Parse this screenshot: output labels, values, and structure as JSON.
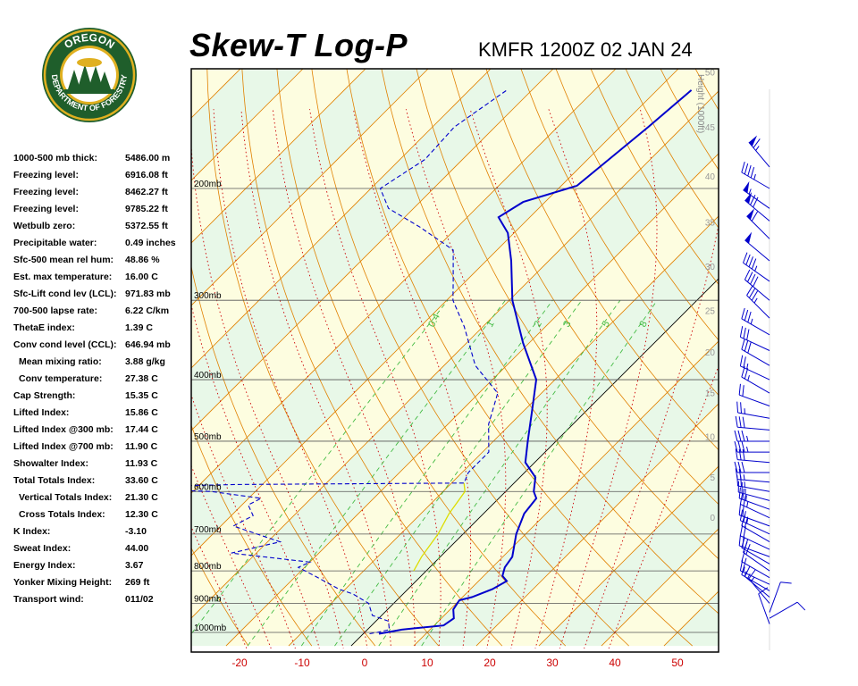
{
  "header": {
    "title": "Skew-T Log-P",
    "station": "KMFR 1200Z 02 JAN 24"
  },
  "logo": {
    "top_text": "OREGON",
    "bottom_text": "DEPARTMENT OF FORESTRY"
  },
  "indices": [
    {
      "label": "1000-500 mb thick:",
      "value": "5486.00 m"
    },
    {
      "label": "Freezing level:",
      "value": "6916.08 ft"
    },
    {
      "label": "Freezing level:",
      "value": "8462.27 ft"
    },
    {
      "label": "Freezing level:",
      "value": "9785.22 ft"
    },
    {
      "label": "Wetbulb zero:",
      "value": "5372.55 ft"
    },
    {
      "label": "Precipitable water:",
      "value": "0.49 inches"
    },
    {
      "label": "Sfc-500 mean rel hum:",
      "value": "48.86 %"
    },
    {
      "label": "Est. max temperature:",
      "value": "16.00 C"
    },
    {
      "label": "Sfc-Lift cond lev (LCL):",
      "value": "971.83 mb"
    },
    {
      "label": "700-500 lapse rate:",
      "value": "6.22 C/km"
    },
    {
      "label": "ThetaE index:",
      "value": "1.39 C"
    },
    {
      "label": "Conv cond level (CCL):",
      "value": "646.94 mb"
    },
    {
      "label": "Mean mixing ratio:",
      "value": "3.88 g/kg",
      "indent": true
    },
    {
      "label": "Conv temperature:",
      "value": "27.38 C",
      "indent": true
    },
    {
      "label": "Cap Strength:",
      "value": "15.35 C"
    },
    {
      "label": "Lifted Index:",
      "value": "15.86 C"
    },
    {
      "label": "Lifted Index @300 mb:",
      "value": "17.44 C"
    },
    {
      "label": "Lifted Index @700 mb:",
      "value": "11.90 C"
    },
    {
      "label": "Showalter Index:",
      "value": "11.93 C"
    },
    {
      "label": "Total Totals Index:",
      "value": "33.60 C"
    },
    {
      "label": "Vertical Totals Index:",
      "value": "21.30 C",
      "indent": true
    },
    {
      "label": "Cross Totals Index:",
      "value": "12.30 C",
      "indent": true
    },
    {
      "label": "K Index:",
      "value": "-3.10"
    },
    {
      "label": "Sweat Index:",
      "value": "44.00"
    },
    {
      "label": "Energy Index:",
      "value": "3.67"
    },
    {
      "label": "Yonker Mixing Height:",
      "value": "269 ft"
    },
    {
      "label": "Transport wind:",
      "value": "011/02"
    }
  ],
  "chart_data": {
    "type": "skew-t log-p",
    "x_axis": {
      "unit": "C",
      "ticks": [
        -20,
        -10,
        0,
        10,
        20,
        30,
        40,
        50
      ],
      "tick_color": "#cc0000"
    },
    "pressure_levels": [
      {
        "p": 200,
        "label": "200mb"
      },
      {
        "p": 300,
        "label": "300mb"
      },
      {
        "p": 400,
        "label": "400mb"
      },
      {
        "p": 500,
        "label": "500mb"
      },
      {
        "p": 600,
        "label": "600mb"
      },
      {
        "p": 700,
        "label": "700mb"
      },
      {
        "p": 800,
        "label": "800mb"
      },
      {
        "p": 900,
        "label": "900mb"
      },
      {
        "p": 1000,
        "label": "1000mb"
      }
    ],
    "height_axis": {
      "label": "Height (1000ft)",
      "ticks": [
        {
          "label": "50",
          "p": 131
        },
        {
          "label": "45",
          "p": 160
        },
        {
          "label": "40",
          "p": 191
        },
        {
          "label": "35",
          "p": 226
        },
        {
          "label": "30",
          "p": 265
        },
        {
          "label": "25",
          "p": 311
        },
        {
          "label": "20",
          "p": 362
        },
        {
          "label": "15",
          "p": 419
        },
        {
          "label": "10",
          "p": 491
        },
        {
          "label": "5",
          "p": 569
        },
        {
          "label": "0",
          "p": 659
        }
      ]
    },
    "mixing_ratio_labels": [
      "0.4",
      "1",
      "2",
      "3",
      "5",
      "8"
    ],
    "mixing_ratio_values": [
      0.4,
      1,
      2,
      3,
      5,
      8
    ],
    "temperature": [
      [
        1005,
        2.5
      ],
      [
        1000,
        3.5
      ],
      [
        990,
        5.5
      ],
      [
        985,
        7.5
      ],
      [
        975,
        11.5
      ],
      [
        950,
        12.0
      ],
      [
        920,
        10.5
      ],
      [
        890,
        10.0
      ],
      [
        880,
        11.5
      ],
      [
        855,
        13.5
      ],
      [
        830,
        14.5
      ],
      [
        815,
        13.0
      ],
      [
        790,
        12.0
      ],
      [
        760,
        11.5
      ],
      [
        700,
        8.5
      ],
      [
        650,
        6.5
      ],
      [
        615,
        6.0
      ],
      [
        600,
        4.5
      ],
      [
        570,
        2.5
      ],
      [
        540,
        -1.5
      ],
      [
        500,
        -4.5
      ],
      [
        450,
        -8.5
      ],
      [
        400,
        -13.0
      ],
      [
        350,
        -21.0
      ],
      [
        300,
        -29.5
      ],
      [
        260,
        -36.0
      ],
      [
        235,
        -41.0
      ],
      [
        222,
        -45.0
      ],
      [
        210,
        -43.5
      ],
      [
        198,
        -37.5
      ],
      [
        160,
        -35.5
      ],
      [
        140,
        -34.5
      ]
    ],
    "dewpoint": [
      [
        1005,
        1.0
      ],
      [
        1000,
        2.0
      ],
      [
        990,
        3.5
      ],
      [
        960,
        2.0
      ],
      [
        940,
        -1.5
      ],
      [
        900,
        -4.0
      ],
      [
        870,
        -8.0
      ],
      [
        855,
        -11.0
      ],
      [
        815,
        -17.0
      ],
      [
        790,
        -21.0
      ],
      [
        775,
        -20.0
      ],
      [
        750,
        -34.0
      ],
      [
        720,
        -28.0
      ],
      [
        680,
        -38.0
      ],
      [
        655,
        -36.5
      ],
      [
        630,
        -39.0
      ],
      [
        615,
        -38.0
      ],
      [
        600,
        -47.0
      ],
      [
        591,
        -64.0
      ],
      [
        585,
        -44.0
      ],
      [
        582,
        -8.0
      ],
      [
        560,
        -9.0
      ],
      [
        520,
        -9.0
      ],
      [
        470,
        -13.5
      ],
      [
        420,
        -17.0
      ],
      [
        380,
        -25.0
      ],
      [
        330,
        -33.0
      ],
      [
        300,
        -39.0
      ],
      [
        280,
        -42.0
      ],
      [
        250,
        -47.0
      ],
      [
        230,
        -56.0
      ],
      [
        215,
        -64.0
      ],
      [
        200,
        -68.5
      ],
      [
        180,
        -66.0
      ],
      [
        160,
        -66.5
      ],
      [
        140,
        -64.0
      ]
    ],
    "parcel": [
      [
        582,
        -8.0
      ],
      [
        600,
        -6.5
      ],
      [
        650,
        -5.5
      ],
      [
        700,
        -4.0
      ],
      [
        760,
        -3.0
      ],
      [
        800,
        -2.0
      ]
    ],
    "wind_barbs": [
      {
        "p": 185,
        "dir": 320,
        "speed_kt": 65
      },
      {
        "p": 200,
        "dir": 300,
        "speed_kt": 45
      },
      {
        "p": 215,
        "dir": 305,
        "speed_kt": 55
      },
      {
        "p": 225,
        "dir": 310,
        "speed_kt": 70
      },
      {
        "p": 240,
        "dir": 315,
        "speed_kt": 60
      },
      {
        "p": 260,
        "dir": 310,
        "speed_kt": 50
      },
      {
        "p": 280,
        "dir": 305,
        "speed_kt": 45
      },
      {
        "p": 300,
        "dir": 310,
        "speed_kt": 40
      },
      {
        "p": 320,
        "dir": 315,
        "speed_kt": 35
      },
      {
        "p": 340,
        "dir": 300,
        "speed_kt": 35
      },
      {
        "p": 360,
        "dir": 295,
        "speed_kt": 30
      },
      {
        "p": 380,
        "dir": 300,
        "speed_kt": 30
      },
      {
        "p": 400,
        "dir": 295,
        "speed_kt": 25
      },
      {
        "p": 420,
        "dir": 300,
        "speed_kt": 25
      },
      {
        "p": 440,
        "dir": 290,
        "speed_kt": 20
      },
      {
        "p": 460,
        "dir": 280,
        "speed_kt": 25
      },
      {
        "p": 480,
        "dir": 275,
        "speed_kt": 30
      },
      {
        "p": 500,
        "dir": 270,
        "speed_kt": 35
      },
      {
        "p": 520,
        "dir": 270,
        "speed_kt": 35
      },
      {
        "p": 540,
        "dir": 275,
        "speed_kt": 30
      },
      {
        "p": 560,
        "dir": 270,
        "speed_kt": 30
      },
      {
        "p": 580,
        "dir": 275,
        "speed_kt": 25
      },
      {
        "p": 600,
        "dir": 280,
        "speed_kt": 25
      },
      {
        "p": 620,
        "dir": 285,
        "speed_kt": 25
      },
      {
        "p": 640,
        "dir": 290,
        "speed_kt": 25
      },
      {
        "p": 660,
        "dir": 295,
        "speed_kt": 25
      },
      {
        "p": 680,
        "dir": 290,
        "speed_kt": 20
      },
      {
        "p": 700,
        "dir": 295,
        "speed_kt": 25
      },
      {
        "p": 720,
        "dir": 300,
        "speed_kt": 20
      },
      {
        "p": 740,
        "dir": 295,
        "speed_kt": 20
      },
      {
        "p": 760,
        "dir": 290,
        "speed_kt": 20
      },
      {
        "p": 780,
        "dir": 300,
        "speed_kt": 20
      },
      {
        "p": 800,
        "dir": 305,
        "speed_kt": 20
      },
      {
        "p": 820,
        "dir": 300,
        "speed_kt": 15
      },
      {
        "p": 840,
        "dir": 295,
        "speed_kt": 15
      },
      {
        "p": 860,
        "dir": 300,
        "speed_kt": 15
      },
      {
        "p": 880,
        "dir": 310,
        "speed_kt": 15
      },
      {
        "p": 900,
        "dir": 320,
        "speed_kt": 15
      },
      {
        "p": 930,
        "dir": 20,
        "speed_kt": 10
      },
      {
        "p": 950,
        "dir": 60,
        "speed_kt": 10
      },
      {
        "p": 970,
        "dir": 340,
        "speed_kt": 10
      }
    ],
    "colors": {
      "temperature": "#0000cc",
      "dewpoint": "#0000cc",
      "parcel": "#dddd00",
      "isotherm": "#e08000",
      "dry_adiabat": "#e08000",
      "moist_adiabat": "#cc0000",
      "mixing_ratio": "#44bb44",
      "isobar": "#555555",
      "wind": "#0000cc",
      "band_green": "#e8f8e8",
      "band_yellow": "#fdfde0"
    }
  }
}
